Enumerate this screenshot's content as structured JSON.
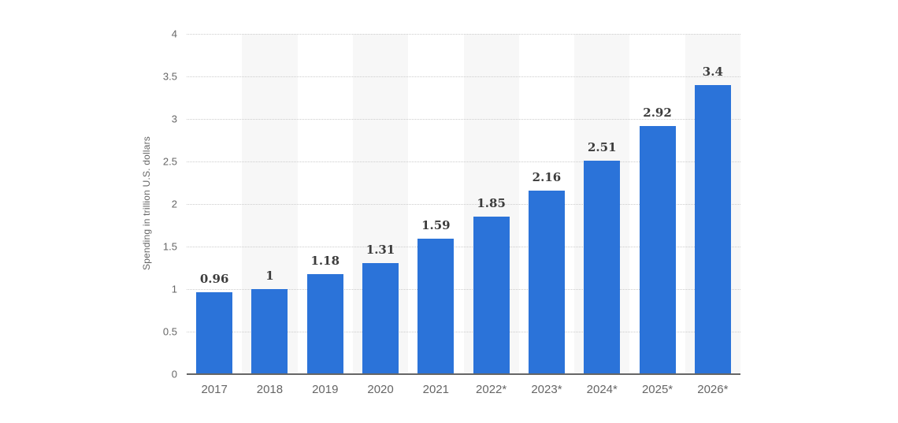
{
  "chart_data": {
    "type": "bar",
    "title": "",
    "xlabel": "",
    "ylabel": "Spending in trillion U.S. dollars",
    "categories": [
      "2017",
      "2018",
      "2019",
      "2020",
      "2021",
      "2022*",
      "2023*",
      "2024*",
      "2025*",
      "2026*"
    ],
    "values": [
      0.96,
      1,
      1.18,
      1.31,
      1.59,
      1.85,
      2.16,
      2.51,
      2.92,
      3.4
    ],
    "value_labels": [
      "0.96",
      "1",
      "1.18",
      "1.31",
      "1.59",
      "1.85",
      "2.16",
      "2.51",
      "2.92",
      "3.4"
    ],
    "ylim": [
      0,
      4
    ],
    "ytick_step": 0.5,
    "ytick_labels": [
      "0",
      "0.5",
      "1",
      "1.5",
      "2",
      "2.5",
      "3",
      "3.5",
      "4"
    ],
    "grid": "horizontal-dotted",
    "legend": "none",
    "striped_columns": "alternate-even",
    "colors": {
      "bar": "#2b73d9",
      "column_stripe": "#f7f7f7",
      "gridline": "#cccccc",
      "axis_line": "#666666",
      "tick_text": "#666666",
      "value_text": "#3c3c3c",
      "background": "#ffffff"
    }
  }
}
